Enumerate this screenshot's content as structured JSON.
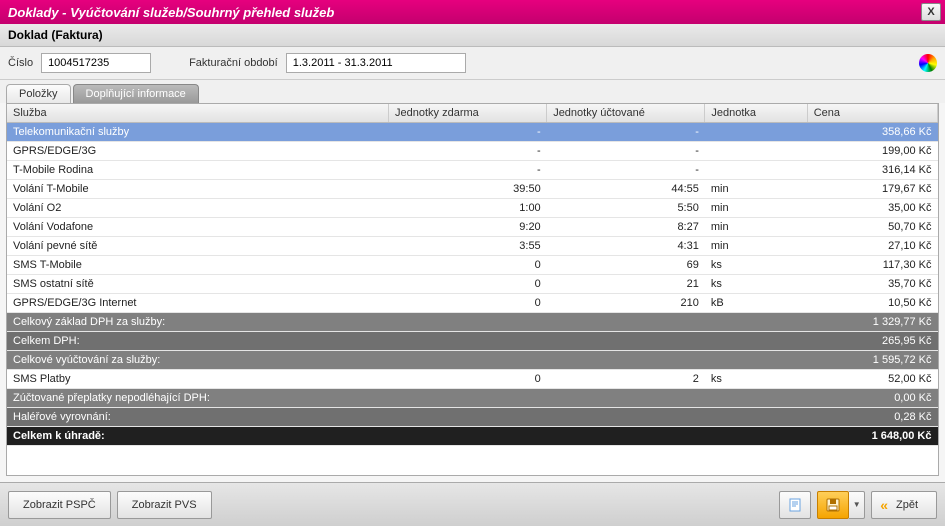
{
  "window": {
    "title": "Doklady - Vyúčtování služeb/Souhrný přehled služeb",
    "close": "X"
  },
  "subheader": "Doklad (Faktura)",
  "form": {
    "num_label": "Číslo",
    "num_value": "1004517235",
    "period_label": "Fakturační období",
    "period_value": "1.3.2011 - 31.3.2011"
  },
  "tabs": {
    "t0": "Položky",
    "t1": "Doplňující informace"
  },
  "table": {
    "columns": {
      "c0": "Služba",
      "c1": "Jednotky zdarma",
      "c2": "Jednotky účtované",
      "c3": "Jednotka",
      "c4": "Cena"
    },
    "col_widths": {
      "c0": "41%",
      "c1": "17%",
      "c2": "17%",
      "c3": "11%",
      "c4": "14%"
    },
    "rows": [
      {
        "type": "sel",
        "c0": "Telekomunikační služby",
        "c1": "-",
        "c2": "-",
        "c3": "",
        "c4": "358,66 Kč"
      },
      {
        "type": "norm",
        "c0": "GPRS/EDGE/3G",
        "c1": "-",
        "c2": "-",
        "c3": "",
        "c4": "199,00 Kč"
      },
      {
        "type": "norm",
        "c0": "T-Mobile Rodina",
        "c1": "-",
        "c2": "-",
        "c3": "",
        "c4": "316,14 Kč"
      },
      {
        "type": "norm",
        "c0": "Volání T-Mobile",
        "c1": "39:50",
        "c2": "44:55",
        "c3": "min",
        "c4": "179,67 Kč"
      },
      {
        "type": "norm",
        "c0": "Volání O2",
        "c1": "1:00",
        "c2": "5:50",
        "c3": "min",
        "c4": "35,00 Kč"
      },
      {
        "type": "norm",
        "c0": "Volání Vodafone",
        "c1": "9:20",
        "c2": "8:27",
        "c3": "min",
        "c4": "50,70 Kč"
      },
      {
        "type": "norm",
        "c0": "Volání pevné sítě",
        "c1": "3:55",
        "c2": "4:31",
        "c3": "min",
        "c4": "27,10 Kč"
      },
      {
        "type": "norm",
        "c0": "SMS T-Mobile",
        "c1": "0",
        "c2": "69",
        "c3": "ks",
        "c4": "117,30 Kč"
      },
      {
        "type": "norm",
        "c0": "SMS ostatní sítě",
        "c1": "0",
        "c2": "21",
        "c3": "ks",
        "c4": "35,70 Kč"
      },
      {
        "type": "norm",
        "c0": "GPRS/EDGE/3G Internet",
        "c1": "0",
        "c2": "210",
        "c3": "kB",
        "c4": "10,50 Kč"
      },
      {
        "type": "sum",
        "c0": "Celkový základ DPH za služby:",
        "c1": "",
        "c2": "",
        "c3": "",
        "c4": "1 329,77 Kč"
      },
      {
        "type": "sum2",
        "c0": "Celkem DPH:",
        "c1": "",
        "c2": "",
        "c3": "",
        "c4": "265,95 Kč"
      },
      {
        "type": "sum",
        "c0": "Celkové vyúčtování za služby:",
        "c1": "",
        "c2": "",
        "c3": "",
        "c4": "1 595,72 Kč"
      },
      {
        "type": "norm",
        "c0": "SMS Platby",
        "c1": "0",
        "c2": "2",
        "c3": "ks",
        "c4": "52,00 Kč"
      },
      {
        "type": "sum",
        "c0": "Zúčtované přeplatky nepodléhající DPH:",
        "c1": "",
        "c2": "",
        "c3": "",
        "c4": "0,00 Kč"
      },
      {
        "type": "sum2",
        "c0": "Haléřové vyrovnání:",
        "c1": "",
        "c2": "",
        "c3": "",
        "c4": "0,28 Kč"
      },
      {
        "type": "total",
        "c0": "Celkem k úhradě:",
        "c1": "",
        "c2": "",
        "c3": "",
        "c4": "1 648,00 Kč"
      }
    ]
  },
  "footer": {
    "btn_pspc": "Zobrazit PSPČ",
    "btn_pvs": "Zobrazit PVS",
    "btn_back": "Zpět"
  },
  "colors": {
    "titlebar_from": "#e6007e",
    "titlebar_to": "#c4006e",
    "selected_row": "#7a9edb",
    "summary_row": "#808080",
    "summary_row2": "#707070",
    "total_row": "#202020",
    "orange": "#f5a400"
  }
}
